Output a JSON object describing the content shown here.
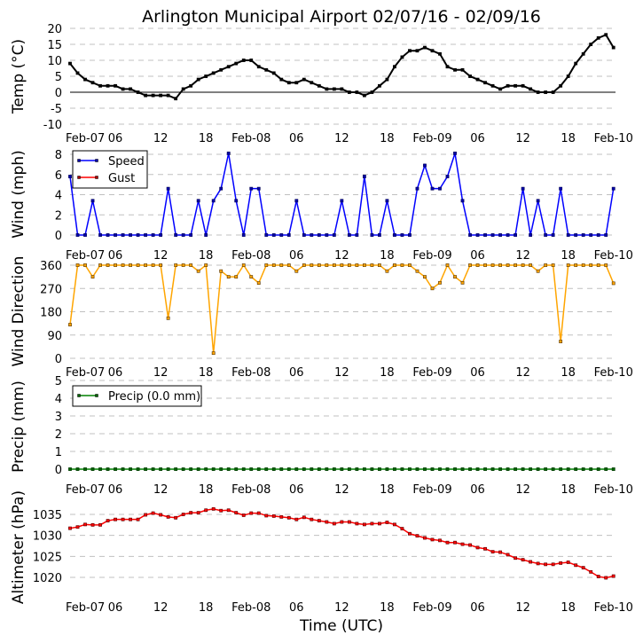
{
  "title": "Arlington Municipal Airport 02/07/16 - 02/09/16",
  "xlabel": "Time (UTC)",
  "x_tick_labels": [
    "Feb-07",
    "06",
    "12",
    "18",
    "Feb-08",
    "06",
    "12",
    "18",
    "Feb-09",
    "06",
    "12",
    "18",
    "Feb-10"
  ],
  "colors": {
    "temp": "#000000",
    "speed": "#0000ff",
    "gust": "#ff0000",
    "direction": "#ffa500",
    "precip": "#008000",
    "altimeter": "#ff0000"
  },
  "chart_data": [
    {
      "type": "line",
      "ylabel": "Temp (°C)",
      "ylim": [
        -10,
        20
      ],
      "yticks": [
        -10,
        -5,
        0,
        5,
        10,
        15,
        20
      ],
      "grid": true,
      "zero_line": true,
      "x": [
        "2016-02-07 00:00",
        "2016-02-07 01:00",
        "2016-02-07 02:00",
        "2016-02-07 03:00",
        "2016-02-07 04:00",
        "2016-02-07 05:00",
        "2016-02-07 06:00",
        "2016-02-07 07:00",
        "2016-02-07 08:00",
        "2016-02-07 09:00",
        "2016-02-07 10:00",
        "2016-02-07 11:00",
        "2016-02-07 12:00",
        "2016-02-07 13:00",
        "2016-02-07 14:00",
        "2016-02-07 15:00",
        "2016-02-07 16:00",
        "2016-02-07 17:00",
        "2016-02-07 18:00",
        "2016-02-07 19:00",
        "2016-02-07 20:00",
        "2016-02-07 21:00",
        "2016-02-07 22:00",
        "2016-02-07 23:00",
        "2016-02-08 00:00",
        "2016-02-08 01:00",
        "2016-02-08 02:00",
        "2016-02-08 03:00",
        "2016-02-08 04:00",
        "2016-02-08 05:00",
        "2016-02-08 06:00",
        "2016-02-08 07:00",
        "2016-02-08 08:00",
        "2016-02-08 09:00",
        "2016-02-08 10:00",
        "2016-02-08 11:00",
        "2016-02-08 12:00",
        "2016-02-08 13:00",
        "2016-02-08 14:00",
        "2016-02-08 15:00",
        "2016-02-08 16:00",
        "2016-02-08 17:00",
        "2016-02-08 18:00",
        "2016-02-08 19:00",
        "2016-02-08 20:00",
        "2016-02-08 21:00",
        "2016-02-08 22:00",
        "2016-02-08 23:00",
        "2016-02-09 00:00",
        "2016-02-09 01:00",
        "2016-02-09 02:00",
        "2016-02-09 03:00",
        "2016-02-09 04:00",
        "2016-02-09 05:00",
        "2016-02-09 06:00",
        "2016-02-09 07:00",
        "2016-02-09 08:00",
        "2016-02-09 09:00",
        "2016-02-09 10:00",
        "2016-02-09 11:00",
        "2016-02-09 12:00",
        "2016-02-09 13:00",
        "2016-02-09 14:00",
        "2016-02-09 15:00",
        "2016-02-09 16:00",
        "2016-02-09 17:00",
        "2016-02-09 18:00",
        "2016-02-09 19:00",
        "2016-02-09 20:00",
        "2016-02-09 21:00",
        "2016-02-09 22:00",
        "2016-02-09 23:00",
        "2016-02-10 00:00"
      ],
      "series": [
        {
          "key": "temp",
          "values": [
            9,
            6,
            4,
            3,
            2,
            2,
            2,
            1,
            1,
            0,
            -1,
            -1,
            -1,
            -1,
            -2,
            1,
            2,
            4,
            5,
            6,
            7,
            8,
            9,
            10,
            10,
            8,
            7,
            6,
            4,
            3,
            3,
            4,
            3,
            2,
            1,
            1,
            1,
            0,
            0,
            -1,
            0,
            2,
            4,
            8,
            11,
            13,
            13,
            14,
            13,
            12,
            8,
            7,
            7,
            5,
            4,
            3,
            2,
            1,
            2,
            2,
            2,
            1,
            0,
            0,
            0,
            2,
            5,
            9,
            12,
            15,
            17,
            18,
            14
          ]
        }
      ]
    },
    {
      "type": "line",
      "ylabel": "Wind (mph)",
      "ylim": [
        0,
        8
      ],
      "yticks": [
        0,
        2,
        4,
        6,
        8
      ],
      "grid": true,
      "legend": "top-left",
      "series": [
        {
          "key": "speed",
          "name": "Speed",
          "values": [
            5.8,
            0,
            0,
            3.4,
            0,
            0,
            0,
            0,
            0,
            0,
            0,
            0,
            0,
            4.6,
            0,
            0,
            0,
            3.4,
            0,
            3.4,
            4.6,
            8.1,
            3.4,
            0,
            4.6,
            4.6,
            0,
            0,
            0,
            0,
            3.4,
            0,
            0,
            0,
            0,
            0,
            3.4,
            0,
            0,
            5.8,
            0,
            0,
            3.4,
            0,
            0,
            0,
            4.6,
            6.9,
            4.6,
            4.6,
            5.8,
            8.1,
            3.4,
            0,
            0,
            0,
            0,
            0,
            0,
            0,
            4.6,
            0,
            3.4,
            0,
            0,
            4.6,
            0,
            0,
            0,
            0,
            0,
            0,
            4.6
          ]
        },
        {
          "key": "gust",
          "name": "Gust",
          "values": []
        }
      ]
    },
    {
      "type": "line",
      "ylabel": "Wind Direction",
      "ylim": [
        0,
        360
      ],
      "yticks": [
        0,
        90,
        180,
        270,
        360
      ],
      "grid": true,
      "series": [
        {
          "key": "direction",
          "values": [
            130,
            360,
            360,
            315,
            360,
            360,
            360,
            360,
            360,
            360,
            360,
            360,
            360,
            155,
            360,
            360,
            360,
            337,
            360,
            20,
            337,
            315,
            315,
            360,
            315,
            291,
            360,
            360,
            360,
            360,
            337,
            360,
            360,
            360,
            360,
            360,
            360,
            360,
            360,
            360,
            360,
            360,
            337,
            360,
            360,
            360,
            337,
            315,
            270,
            292,
            360,
            315,
            292,
            360,
            360,
            360,
            360,
            360,
            360,
            360,
            360,
            360,
            337,
            360,
            360,
            65,
            360,
            360,
            360,
            360,
            360,
            360,
            290
          ]
        }
      ]
    },
    {
      "type": "line",
      "ylabel": "Precip (mm)",
      "ylim": [
        0,
        5
      ],
      "yticks": [
        0,
        1,
        2,
        3,
        4,
        5
      ],
      "grid": true,
      "legend": "top-left",
      "series": [
        {
          "key": "precip",
          "name": "Precip (0.0 mm)",
          "values": [
            0,
            0,
            0,
            0,
            0,
            0,
            0,
            0,
            0,
            0,
            0,
            0,
            0,
            0,
            0,
            0,
            0,
            0,
            0,
            0,
            0,
            0,
            0,
            0,
            0,
            0,
            0,
            0,
            0,
            0,
            0,
            0,
            0,
            0,
            0,
            0,
            0,
            0,
            0,
            0,
            0,
            0,
            0,
            0,
            0,
            0,
            0,
            0,
            0,
            0,
            0,
            0,
            0,
            0,
            0,
            0,
            0,
            0,
            0,
            0,
            0,
            0,
            0,
            0,
            0,
            0,
            0,
            0,
            0,
            0,
            0,
            0,
            0
          ]
        }
      ]
    },
    {
      "type": "line",
      "ylabel": "Altimeter (hPa)",
      "ylim": [
        1020,
        1035
      ],
      "yticks": [
        1020,
        1025,
        1030,
        1035
      ],
      "grid": true,
      "series": [
        {
          "key": "altimeter",
          "values": [
            1031.7,
            1032.0,
            1032.6,
            1032.5,
            1032.5,
            1033.5,
            1033.8,
            1033.8,
            1033.8,
            1033.8,
            1034.9,
            1035.3,
            1034.9,
            1034.4,
            1034.2,
            1035.0,
            1035.4,
            1035.4,
            1036.0,
            1036.3,
            1035.9,
            1036.0,
            1035.4,
            1034.8,
            1035.3,
            1035.3,
            1034.7,
            1034.6,
            1034.4,
            1034.2,
            1033.8,
            1034.3,
            1033.8,
            1033.5,
            1033.2,
            1032.8,
            1033.2,
            1033.2,
            1032.8,
            1032.6,
            1032.8,
            1032.8,
            1033.1,
            1032.6,
            1031.6,
            1030.4,
            1029.9,
            1029.4,
            1029.0,
            1028.8,
            1028.3,
            1028.3,
            1027.9,
            1027.7,
            1027.1,
            1026.8,
            1026.1,
            1026.0,
            1025.4,
            1024.6,
            1024.2,
            1023.7,
            1023.3,
            1023.1,
            1023.1,
            1023.4,
            1023.6,
            1022.9,
            1022.3,
            1021.3,
            1020.2,
            1019.9,
            1020.3
          ]
        }
      ]
    }
  ]
}
